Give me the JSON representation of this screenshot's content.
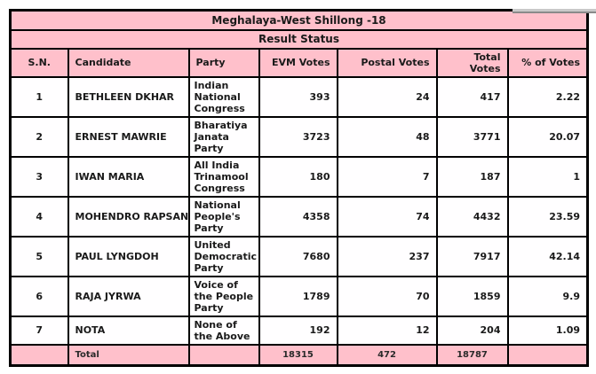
{
  "colors": {
    "header_pink": "#ffc0cb",
    "row_white": "#ffffff",
    "border_black": "#000000",
    "text_dark": "#1a1a1a",
    "scrollbar_gray": "#c9c9c9"
  },
  "table": {
    "title": "Meghalaya-West Shillong -18",
    "status": "Result Status",
    "columns": [
      "S.N.",
      "Candidate",
      "Party",
      "EVM Votes",
      "Postal Votes",
      "Total Votes",
      "% of Votes"
    ],
    "rows": [
      {
        "sn": "1",
        "candidate": "BETHLEEN DKHAR",
        "party": "Indian National Congress",
        "evm": "393",
        "postal": "24",
        "total": "417",
        "pct": "2.22"
      },
      {
        "sn": "2",
        "candidate": "ERNEST MAWRIE",
        "party": "Bharatiya Janata Party",
        "evm": "3723",
        "postal": "48",
        "total": "3771",
        "pct": "20.07"
      },
      {
        "sn": "3",
        "candidate": "IWAN MARIA",
        "party": "All India Trinamool Congress",
        "evm": "180",
        "postal": "7",
        "total": "187",
        "pct": "1"
      },
      {
        "sn": "4",
        "candidate": "MOHENDRO RAPSANG",
        "party": "National People's Party",
        "evm": "4358",
        "postal": "74",
        "total": "4432",
        "pct": "23.59"
      },
      {
        "sn": "5",
        "candidate": "PAUL LYNGDOH",
        "party": "United Democratic Party",
        "evm": "7680",
        "postal": "237",
        "total": "7917",
        "pct": "42.14"
      },
      {
        "sn": "6",
        "candidate": "RAJA JYRWA",
        "party": "Voice of the People Party",
        "evm": "1789",
        "postal": "70",
        "total": "1859",
        "pct": "9.9"
      },
      {
        "sn": "7",
        "candidate": "NOTA",
        "party": "None of the Above",
        "evm": "192",
        "postal": "12",
        "total": "204",
        "pct": "1.09"
      }
    ],
    "totals": {
      "label": "Total",
      "evm": "18315",
      "postal": "472",
      "total": "18787"
    }
  }
}
